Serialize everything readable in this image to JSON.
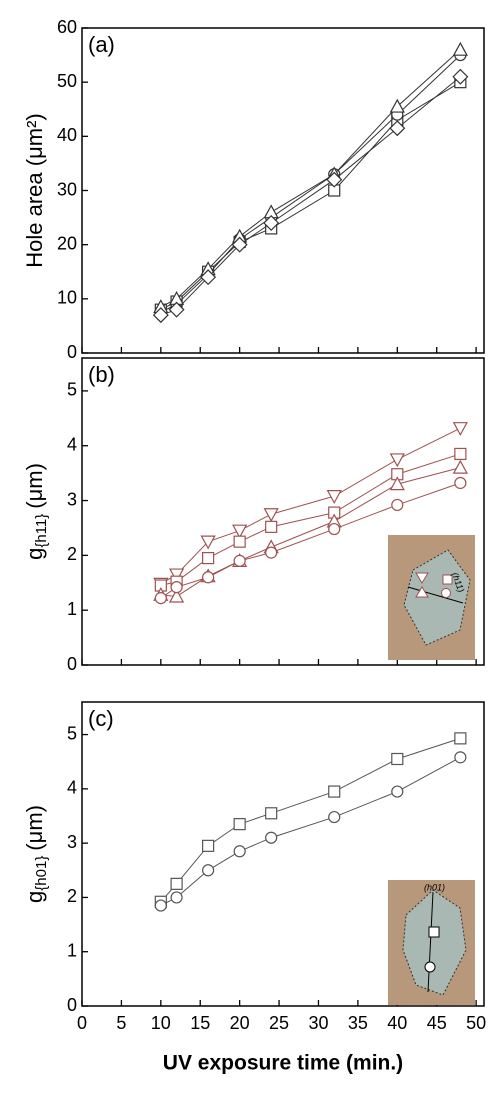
{
  "chart_data": [
    {
      "type": "line",
      "panel_label": "(a)",
      "y_label": "Hole area (μm²)",
      "x": [
        10,
        12,
        16,
        20,
        24,
        32,
        40,
        48
      ],
      "xlim": [
        0,
        51
      ],
      "xticks": [
        0,
        5,
        10,
        15,
        20,
        25,
        30,
        35,
        40,
        45,
        50
      ],
      "ylim": [
        0,
        60
      ],
      "yticks": [
        0,
        10,
        20,
        30,
        40,
        50,
        60
      ],
      "series": [
        {
          "marker": "square",
          "color": "#333333",
          "values": [
            8,
            9.5,
            15,
            20.5,
            23,
            30,
            43,
            50
          ]
        },
        {
          "marker": "circle",
          "color": "#333333",
          "values": [
            7.5,
            9,
            14.5,
            21,
            25,
            33,
            44,
            55
          ]
        },
        {
          "marker": "triangle",
          "color": "#333333",
          "values": [
            8.5,
            10,
            15.5,
            21.5,
            26,
            33,
            45.5,
            56
          ]
        },
        {
          "marker": "diamond",
          "color": "#333333",
          "values": [
            7,
            8,
            14,
            20,
            24,
            32,
            41.5,
            51
          ]
        }
      ]
    },
    {
      "type": "line",
      "panel_label": "(b)",
      "y_label": "g",
      "y_label_sub": "{h11}",
      "y_label_unit": "(μm)",
      "inset_label": "(h11)",
      "x": [
        10,
        12,
        16,
        20,
        24,
        32,
        40,
        48
      ],
      "xlim": [
        0,
        51
      ],
      "xticks": [
        0,
        5,
        10,
        15,
        20,
        25,
        30,
        35,
        40,
        45,
        50
      ],
      "ylim": [
        0,
        5.6
      ],
      "yticks": [
        0,
        1,
        2,
        3,
        4,
        5
      ],
      "series": [
        {
          "marker": "triangle-down",
          "color": "#a0504f",
          "values": [
            1.48,
            1.65,
            2.25,
            2.45,
            2.75,
            3.08,
            3.75,
            4.32
          ]
        },
        {
          "marker": "square",
          "color": "#a0504f",
          "values": [
            1.45,
            1.52,
            1.95,
            2.25,
            2.52,
            2.78,
            3.48,
            3.85
          ]
        },
        {
          "marker": "triangle",
          "color": "#a0504f",
          "values": [
            1.28,
            1.25,
            1.62,
            1.9,
            2.15,
            2.62,
            3.3,
            3.6
          ]
        },
        {
          "marker": "circle",
          "color": "#a0504f",
          "values": [
            1.22,
            1.42,
            1.6,
            1.9,
            2.05,
            2.48,
            2.92,
            3.32
          ]
        }
      ]
    },
    {
      "type": "line",
      "panel_label": "(c)",
      "y_label": "g",
      "y_label_sub": "{h01}",
      "y_label_unit": "(μm)",
      "inset_label": "(h01)",
      "x_label": "UV exposure time (min.)",
      "x": [
        10,
        12,
        16,
        20,
        24,
        32,
        40,
        48
      ],
      "xlim": [
        0,
        51
      ],
      "xticks": [
        0,
        5,
        10,
        15,
        20,
        25,
        30,
        35,
        40,
        45,
        50
      ],
      "ylim": [
        0,
        5.6
      ],
      "yticks": [
        0,
        1,
        2,
        3,
        4,
        5
      ],
      "series": [
        {
          "marker": "square",
          "color": "#555555",
          "values": [
            1.92,
            2.25,
            2.95,
            3.35,
            3.55,
            3.95,
            4.55,
            4.93
          ]
        },
        {
          "marker": "circle",
          "color": "#555555",
          "values": [
            1.85,
            2.0,
            2.5,
            2.85,
            3.1,
            3.48,
            3.95,
            4.58
          ]
        }
      ]
    }
  ]
}
